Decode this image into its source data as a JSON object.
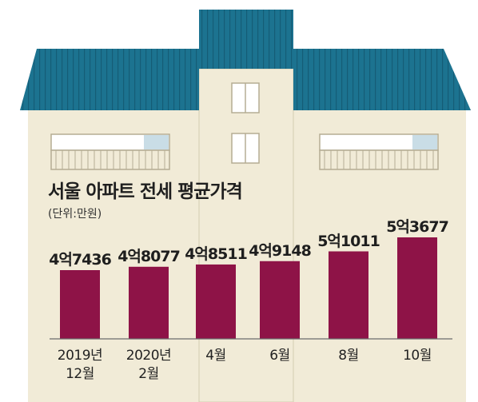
{
  "chart_data": {
    "type": "bar",
    "title": "서울 아파트 전세 평균가격",
    "unit": "(단위:만원)",
    "categories": [
      [
        "2019년",
        "12월"
      ],
      [
        "2020년",
        "2월"
      ],
      [
        "4월"
      ],
      [
        "6월"
      ],
      [
        "8월"
      ],
      [
        "10월"
      ]
    ],
    "values": [
      47436,
      48077,
      48511,
      49148,
      51011,
      53677
    ],
    "data_labels": [
      "4억7436",
      "4억8077",
      "4억8511",
      "4억9148",
      "5억1011",
      "5억3677"
    ],
    "colors": {
      "bar": "#8e1347",
      "roof": "#1c7390",
      "wall": "#f1ebd7",
      "wall_outline": "#b9b19a",
      "window_glass": "#c9dde6"
    }
  }
}
